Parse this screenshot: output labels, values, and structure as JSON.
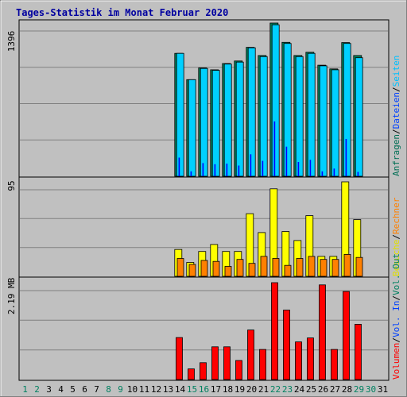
{
  "chart_data": {
    "type": "bar",
    "title": "Tages-Statistik im Monat Februar 2020",
    "days": [
      "1",
      "2",
      "3",
      "4",
      "5",
      "6",
      "7",
      "8",
      "9",
      "10",
      "11",
      "12",
      "13",
      "14",
      "15",
      "16",
      "17",
      "18",
      "19",
      "20",
      "21",
      "22",
      "23",
      "24",
      "25",
      "26",
      "27",
      "28",
      "29",
      "30",
      "31"
    ],
    "weekend_days": [
      "1",
      "2",
      "8",
      "9",
      "15",
      "16",
      "22",
      "23",
      "29",
      "30"
    ],
    "panels": {
      "top": {
        "max_label": "1396",
        "max_value": 1396,
        "right_labels": [
          {
            "text": "Anfragen",
            "color": "#006f55"
          },
          {
            "text": "/",
            "color": "#000000"
          },
          {
            "text": "Dateien",
            "color": "#0040ff"
          },
          {
            "text": "/",
            "color": "#000000"
          },
          {
            "text": "Seiten",
            "color": "#00c0ff"
          }
        ],
        "series": [
          {
            "name": "Anfragen",
            "color": "#00805a",
            "values": [
              0,
              0,
              0,
              0,
              0,
              0,
              0,
              0,
              0,
              0,
              0,
              0,
              0,
              1120,
              880,
              987,
              970,
              1027,
              1050,
              1175,
              1100,
              1396,
              1220,
              1100,
              1130,
              1012,
              978,
              1218,
              1100,
              0,
              0
            ]
          },
          {
            "name": "Dateien",
            "color": "#00d0ff",
            "values": [
              0,
              0,
              0,
              0,
              0,
              0,
              0,
              0,
              0,
              0,
              0,
              0,
              0,
              1120,
              880,
              982,
              965,
              1022,
              1040,
              1170,
              1090,
              1380,
              1210,
              1090,
              1120,
              1006,
              970,
              1210,
              1080,
              0,
              0
            ]
          },
          {
            "name": "Seiten",
            "color": "#0000ff",
            "values": [
              0,
              0,
              0,
              0,
              0,
              0,
              0,
              0,
              0,
              0,
              0,
              0,
              0,
              170,
              45,
              120,
              110,
              115,
              98,
              200,
              140,
              500,
              270,
              130,
              150,
              45,
              70,
              340,
              40,
              0,
              0
            ]
          }
        ]
      },
      "middle": {
        "max_label": "95",
        "max_value": 95,
        "right_labels": [
          {
            "text": "Besuche",
            "color": "#e0e000"
          },
          {
            "text": "/",
            "color": "#000000"
          },
          {
            "text": "Rechner",
            "color": "#ff8000"
          }
        ],
        "series": [
          {
            "name": "Besuche",
            "color": "#ffff00",
            "values": [
              0,
              0,
              0,
              0,
              0,
              0,
              0,
              0,
              0,
              0,
              0,
              0,
              0,
              27,
              14,
              25,
              32,
              25,
              25,
              63,
              44,
              88,
              45,
              36,
              61,
              20,
              20,
              95,
              57,
              0,
              0
            ]
          },
          {
            "name": "Rechner",
            "color": "#ff8000",
            "values": [
              0,
              0,
              0,
              0,
              0,
              0,
              0,
              0,
              0,
              0,
              0,
              0,
              0,
              18,
              12,
              16,
              15,
              10,
              17,
              13,
              20,
              18,
              11,
              18,
              20,
              17,
              17,
              22,
              19,
              0,
              0
            ]
          }
        ]
      },
      "bottom": {
        "max_label": "2.19 MB",
        "max_value": 2.19,
        "right_labels": [
          {
            "text": "Volumen",
            "color": "#ff0000"
          },
          {
            "text": "/",
            "color": "#000000"
          },
          {
            "text": "Vol. In",
            "color": "#0040ff"
          },
          {
            "text": "/",
            "color": "#000000"
          },
          {
            "text": "Vol. Out",
            "color": "#008060"
          }
        ],
        "series": [
          {
            "name": "Volumen",
            "color": "#ff0000",
            "values": [
              0,
              0,
              0,
              0,
              0,
              0,
              0,
              0,
              0,
              0,
              0,
              0,
              0,
              0.95,
              0.24,
              0.38,
              0.74,
              0.74,
              0.43,
              1.12,
              0.68,
              2.19,
              1.57,
              0.85,
              0.94,
              2.14,
              0.68,
              1.99,
              1.25,
              0,
              0
            ]
          }
        ]
      }
    }
  }
}
